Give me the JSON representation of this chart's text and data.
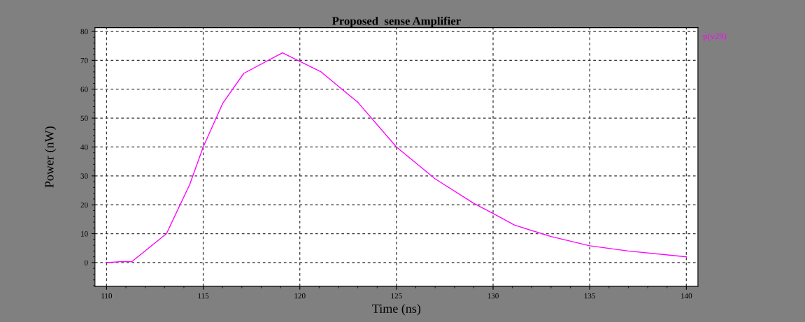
{
  "chart_data": {
    "type": "line",
    "title": "Proposed  sense Amplifier",
    "xlabel": "Time (ns)",
    "ylabel": "Power (nW)",
    "x": [
      110,
      110.7,
      111.3,
      113.1,
      114.3,
      115,
      116,
      117.1,
      119.1,
      121.1,
      123,
      125,
      127,
      129,
      130,
      131.1,
      133,
      135,
      137,
      140
    ],
    "series": [
      {
        "name": "p(v29)",
        "color": "#ff00ff",
        "values": [
          0,
          0.3,
          0.3,
          10,
          27,
          40,
          55,
          65.5,
          72.6,
          66,
          55.5,
          40,
          29,
          20.5,
          17,
          13,
          9,
          5.8,
          4,
          2
        ]
      }
    ],
    "xlim": [
      109.4,
      140.6
    ],
    "ylim": [
      -8.2,
      81.3
    ],
    "xticks": [
      110,
      115,
      120,
      125,
      130,
      135,
      140
    ],
    "yticks": [
      0,
      10,
      20,
      30,
      40,
      50,
      60,
      70,
      80
    ],
    "grid": true,
    "legend": "top right",
    "marker": "none",
    "line_style": "solid"
  }
}
